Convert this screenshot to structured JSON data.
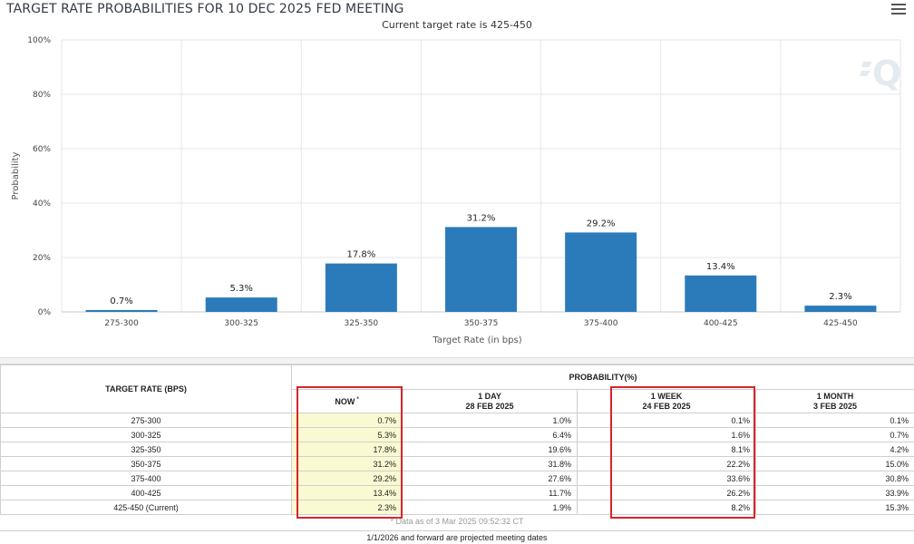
{
  "chart_title": "TARGET RATE PROBABILITIES FOR 10 DEC 2025 FED MEETING",
  "chart_subtitle": "Current target rate is 425-450",
  "chart_data": {
    "type": "bar",
    "title": "TARGET RATE PROBABILITIES FOR 10 DEC 2025 FED MEETING",
    "subtitle": "Current target rate is 425-450",
    "xlabel": "Target Rate (in bps)",
    "ylabel": "Probability",
    "categories": [
      "275-300",
      "300-325",
      "325-350",
      "350-375",
      "375-400",
      "400-425",
      "425-450"
    ],
    "values": [
      0.7,
      5.3,
      17.8,
      31.2,
      29.2,
      13.4,
      2.3
    ],
    "value_labels": [
      "0.7%",
      "5.3%",
      "17.8%",
      "31.2%",
      "29.2%",
      "13.4%",
      "2.3%"
    ],
    "ylim": [
      0,
      100
    ],
    "yticks": [
      0,
      20,
      40,
      60,
      80,
      100
    ],
    "ytick_labels": [
      "0%",
      "20%",
      "40%",
      "60%",
      "80%",
      "100%"
    ],
    "grid": true,
    "bar_color": "#2b7bba"
  },
  "table": {
    "rate_header": "TARGET RATE (BPS)",
    "prob_header": "PROBABILITY(%)",
    "columns": [
      {
        "label": "NOW",
        "date": "",
        "sup": "*"
      },
      {
        "label": "1 DAY",
        "date": "28 FEB 2025",
        "sup": ""
      },
      {
        "label": "1 WEEK",
        "date": "24 FEB 2025",
        "sup": ""
      },
      {
        "label": "1 MONTH",
        "date": "3 FEB 2025",
        "sup": ""
      }
    ],
    "rows": [
      {
        "rate": "275-300",
        "values": [
          "0.7%",
          "1.0%",
          "0.1%",
          "0.1%"
        ]
      },
      {
        "rate": "300-325",
        "values": [
          "5.3%",
          "6.4%",
          "1.6%",
          "0.7%"
        ]
      },
      {
        "rate": "325-350",
        "values": [
          "17.8%",
          "19.6%",
          "8.1%",
          "4.2%"
        ]
      },
      {
        "rate": "350-375",
        "values": [
          "31.2%",
          "31.8%",
          "22.2%",
          "15.0%"
        ]
      },
      {
        "rate": "375-400",
        "values": [
          "29.2%",
          "27.6%",
          "33.6%",
          "30.8%"
        ]
      },
      {
        "rate": "400-425",
        "values": [
          "13.4%",
          "11.7%",
          "26.2%",
          "33.9%"
        ]
      },
      {
        "rate": "425-450 (Current)",
        "values": [
          "2.3%",
          "1.9%",
          "8.2%",
          "15.3%"
        ]
      }
    ],
    "footnote": "* Data as of 3 Mar 2025 09:52:32 CT",
    "footer": "1/1/2026 and forward are projected meeting dates"
  },
  "colors": {
    "highlight_now": "#f9f9d2",
    "annotation_box": "#d6252b"
  },
  "icons": {
    "menu": "hamburger-menu-icon",
    "watermark": "logo-q-icon"
  }
}
